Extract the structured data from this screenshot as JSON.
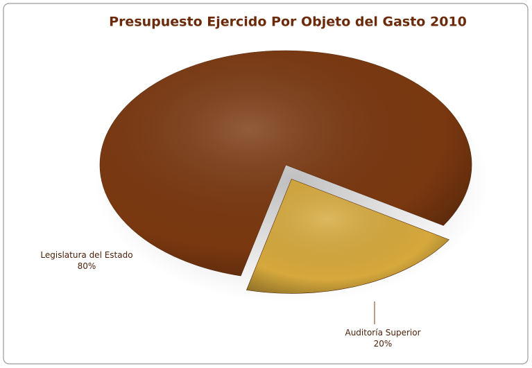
{
  "chart_data": {
    "type": "pie",
    "title": "Presupuesto Ejercido Por Objeto del Gasto 2010",
    "categories": [
      "Legislatura del Estado",
      "Auditoría Superior"
    ],
    "values": [
      80,
      20
    ],
    "value_labels": [
      "80%",
      "20%"
    ],
    "colors": [
      "#7a3810",
      "#d6a93c"
    ]
  }
}
